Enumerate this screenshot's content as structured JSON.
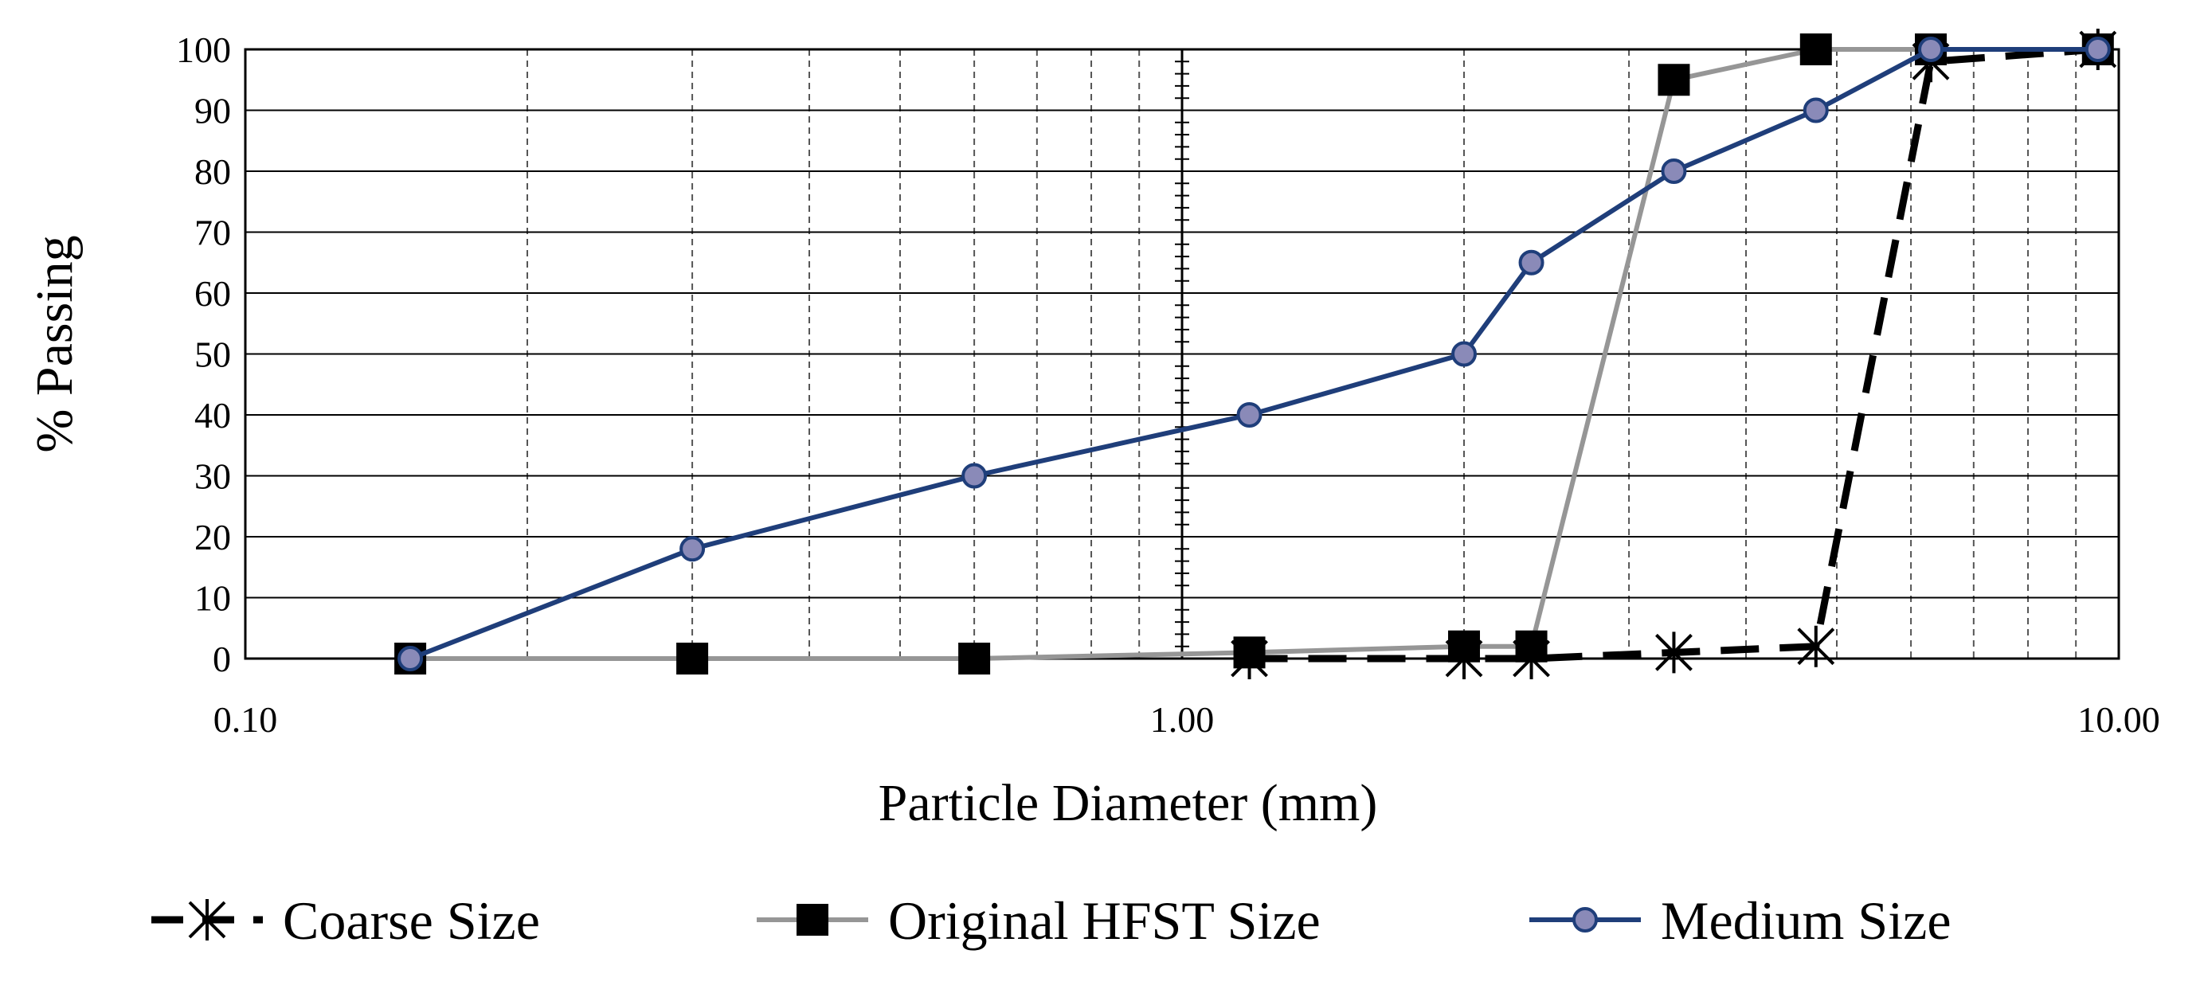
{
  "chart_data": {
    "type": "line",
    "title": "",
    "xlabel": "Particle Diameter (mm)",
    "ylabel": "% Passing",
    "x_scale": "log",
    "xlim": [
      0.1,
      10
    ],
    "ylim": [
      0,
      100
    ],
    "x_ticks": [
      "0.10",
      "1.00",
      "10.00"
    ],
    "y_ticks": [
      "0",
      "10",
      "20",
      "30",
      "40",
      "50",
      "60",
      "70",
      "80",
      "90",
      "100"
    ],
    "grid": true,
    "legend_position": "bottom",
    "series": [
      {
        "name": "Coarse Size",
        "color": "#000000",
        "line_style": "dashed",
        "marker": "star",
        "x": [
          1.18,
          2.0,
          2.36,
          3.35,
          4.75,
          6.3,
          9.5
        ],
        "y": [
          0,
          0,
          0,
          1,
          2,
          98,
          100
        ]
      },
      {
        "name": "Original HFST Size",
        "color": "#969696",
        "line_style": "solid",
        "marker": "square",
        "x": [
          0.15,
          0.3,
          0.6,
          1.18,
          2.0,
          2.36,
          3.35,
          4.75,
          6.3,
          9.5
        ],
        "y": [
          0,
          0,
          0,
          1,
          2,
          2,
          95,
          100,
          100,
          100
        ]
      },
      {
        "name": "Medium Size",
        "color": "#1f3e7a",
        "line_style": "solid",
        "marker": "circle",
        "x": [
          0.15,
          0.3,
          0.6,
          1.18,
          2.0,
          2.36,
          3.35,
          4.75,
          6.3,
          9.5
        ],
        "y": [
          0,
          18,
          30,
          40,
          50,
          65,
          80,
          90,
          100,
          100
        ]
      }
    ]
  }
}
